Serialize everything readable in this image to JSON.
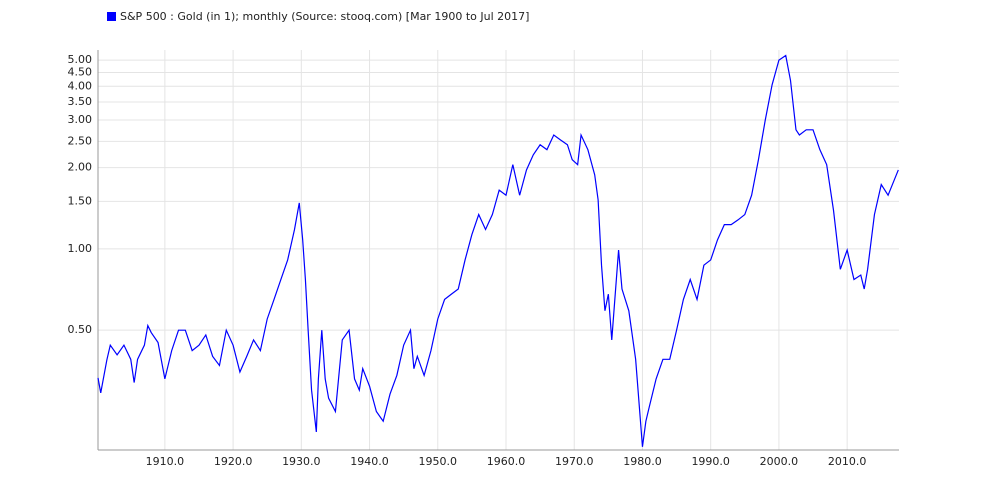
{
  "chart_data": {
    "type": "line",
    "log_y": true,
    "grid": true,
    "legend": "top-left",
    "xlim": [
      1900.2,
      2017.6
    ],
    "ylim": [
      0.18,
      5.45
    ],
    "xticks": [
      {
        "value": 1910,
        "label": "1910.0"
      },
      {
        "value": 1920,
        "label": "1920.0"
      },
      {
        "value": 1930,
        "label": "1930.0"
      },
      {
        "value": 1940,
        "label": "1940.0"
      },
      {
        "value": 1950,
        "label": "1950.0"
      },
      {
        "value": 1960,
        "label": "1960.0"
      },
      {
        "value": 1970,
        "label": "1970.0"
      },
      {
        "value": 1980,
        "label": "1980.0"
      },
      {
        "value": 1990,
        "label": "1990.0"
      },
      {
        "value": 2000,
        "label": "2000.0"
      },
      {
        "value": 2010,
        "label": "2010.0"
      }
    ],
    "yticks": [
      {
        "value": 0.5,
        "label": "0.50"
      },
      {
        "value": 1,
        "label": "1.00"
      },
      {
        "value": 1.5,
        "label": "1.50"
      },
      {
        "value": 2,
        "label": "2.00"
      },
      {
        "value": 2.5,
        "label": "2.50"
      },
      {
        "value": 3,
        "label": "3.00"
      },
      {
        "value": 3.5,
        "label": "3.50"
      },
      {
        "value": 4,
        "label": "4.00"
      },
      {
        "value": 4.5,
        "label": "4.50"
      },
      {
        "value": 5,
        "label": "5.00"
      }
    ],
    "x": [
      1900.2,
      1900.6,
      1901.5,
      1902,
      1903,
      1904,
      1905,
      1905.5,
      1906,
      1907,
      1907.5,
      1908,
      1909,
      1910,
      1911,
      1912,
      1913,
      1914,
      1915,
      1916,
      1917,
      1918,
      1919,
      1920,
      1921,
      1922,
      1923,
      1924,
      1925,
      1926,
      1927,
      1928,
      1929,
      1929.7,
      1930.2,
      1930.6,
      1931,
      1931.5,
      1932.2,
      1932.5,
      1933,
      1933.5,
      1934,
      1935,
      1936,
      1937,
      1937.8,
      1938.5,
      1939,
      1940,
      1941,
      1942,
      1943,
      1944,
      1945,
      1946,
      1946.5,
      1947,
      1948,
      1949,
      1950,
      1951,
      1952,
      1953,
      1954,
      1955,
      1956,
      1957,
      1958,
      1959,
      1960,
      1961,
      1962,
      1963,
      1964,
      1965,
      1966,
      1967,
      1968,
      1969,
      1969.7,
      1970.5,
      1971,
      1972,
      1973,
      1973.5,
      1974,
      1974.5,
      1975,
      1975.5,
      1976.5,
      1977,
      1978,
      1979,
      1980,
      1980.5,
      1981,
      1982,
      1983,
      1984,
      1985,
      1986,
      1987,
      1988,
      1989,
      1990,
      1991,
      1992,
      1993,
      1994,
      1995,
      1996,
      1997,
      1998,
      1999,
      2000,
      2001,
      2001.7,
      2002.5,
      2003,
      2004,
      2005,
      2006,
      2007,
      2008,
      2009,
      2010,
      2011,
      2012,
      2012.5,
      2013,
      2014,
      2015,
      2016,
      2017.5
    ],
    "series": [
      {
        "name": "S&P 500 : Gold (in 1); monthly (Source: stooq.com) [Mar 1900 to Jul 2017]",
        "color": "#0000ff",
        "values": [
          0.333,
          0.293,
          0.388,
          0.44,
          0.405,
          0.44,
          0.39,
          0.32,
          0.39,
          0.44,
          0.52,
          0.49,
          0.45,
          0.33,
          0.42,
          0.5,
          0.5,
          0.42,
          0.44,
          0.48,
          0.4,
          0.37,
          0.5,
          0.44,
          0.35,
          0.4,
          0.46,
          0.42,
          0.55,
          0.65,
          0.77,
          0.91,
          1.18,
          1.48,
          1.08,
          0.77,
          0.5,
          0.3,
          0.21,
          0.33,
          0.5,
          0.33,
          0.28,
          0.25,
          0.46,
          0.5,
          0.33,
          0.3,
          0.36,
          0.31,
          0.25,
          0.23,
          0.29,
          0.34,
          0.44,
          0.5,
          0.36,
          0.4,
          0.34,
          0.42,
          0.55,
          0.65,
          0.68,
          0.71,
          0.91,
          1.13,
          1.34,
          1.18,
          1.34,
          1.65,
          1.58,
          2.05,
          1.58,
          1.96,
          2.23,
          2.43,
          2.33,
          2.64,
          2.53,
          2.43,
          2.14,
          2.05,
          2.64,
          2.33,
          1.88,
          1.52,
          0.87,
          0.59,
          0.68,
          0.46,
          0.99,
          0.71,
          0.59,
          0.39,
          0.185,
          0.23,
          0.26,
          0.33,
          0.39,
          0.39,
          0.5,
          0.65,
          0.77,
          0.65,
          0.87,
          0.91,
          1.08,
          1.23,
          1.23,
          1.28,
          1.34,
          1.58,
          2.14,
          3.0,
          4.05,
          5.0,
          5.2,
          4.2,
          2.76,
          2.64,
          2.76,
          2.76,
          2.33,
          2.05,
          1.39,
          0.84,
          0.99,
          0.77,
          0.8,
          0.71,
          0.84,
          1.34,
          1.73,
          1.58,
          1.96
        ]
      }
    ]
  }
}
